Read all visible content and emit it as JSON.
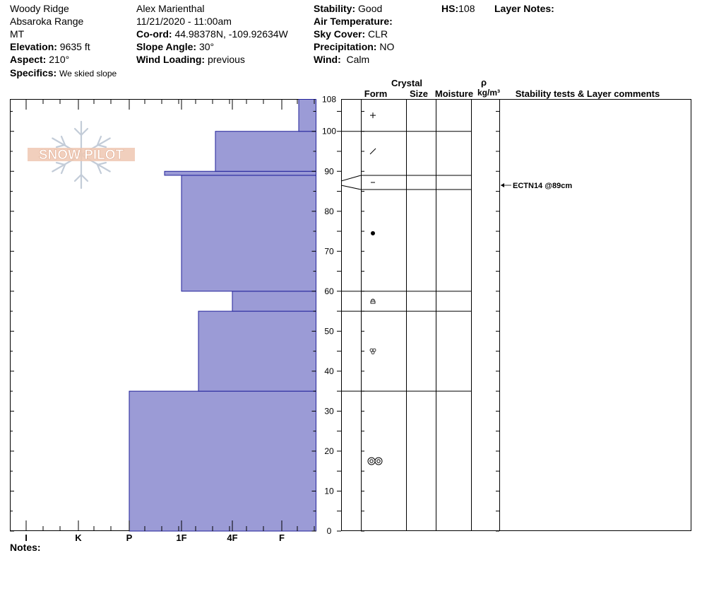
{
  "header": {
    "location": "Woody Ridge",
    "range": "Absaroka Range",
    "state": "MT",
    "elevation_label": "Elevation:",
    "elevation_value": "9635 ft",
    "aspect_label": "Aspect:",
    "aspect_value": "210°",
    "specifics_label": "Specifics:",
    "specifics_value": "We skied slope",
    "observer": "Alex Marienthal",
    "datetime": "11/21/2020 - 11:00am",
    "coord_label": "Co-ord:",
    "coord_value": "44.98378N, -109.92634W",
    "slope_label": "Slope Angle:",
    "slope_value": "30°",
    "wind_loading_label": "Wind Loading:",
    "wind_loading_value": "previous",
    "stability_label": "Stability:",
    "stability_value": "Good",
    "air_temp_label": "Air Temperature:",
    "sky_label": "Sky Cover:",
    "sky_value": "CLR",
    "precip_label": "Precipitation:",
    "precip_value": "NO",
    "wind_label": "Wind:",
    "wind_value": "Calm",
    "hs_label": "HS:",
    "hs_value": "108",
    "layer_notes_label": "Layer Notes:"
  },
  "logo": {
    "text": "SNOW PILOT"
  },
  "notes_label": "Notes:",
  "columns": {
    "crystal": "Crystal",
    "form": "Form",
    "size": "Size",
    "moisture": "Moisture",
    "rho": "ρ",
    "density_unit": "kg/m³",
    "stability": "Stability tests & Layer comments"
  },
  "colors": {
    "hardness_fill": "#9b9bd6",
    "hardness_edge": "#22229a"
  },
  "chart_data": {
    "type": "bar",
    "title": "",
    "y_ticks": [
      0,
      10,
      20,
      30,
      40,
      50,
      60,
      70,
      80,
      90,
      100,
      108
    ],
    "y_range_cm": [
      0,
      108
    ],
    "hardness_scale": [
      "I",
      "K",
      "P",
      "1F",
      "4F",
      "F"
    ],
    "layers": [
      {
        "bottom": 0,
        "top": 35,
        "hardness": "P",
        "form": "melt-forms"
      },
      {
        "bottom": 35,
        "top": 55,
        "hardness": "1F+",
        "form": "melt-freeze"
      },
      {
        "bottom": 55,
        "top": 60,
        "hardness": "4F",
        "form": "depth-hoar"
      },
      {
        "bottom": 60,
        "top": 89,
        "hardness": "1F",
        "form": "rounds"
      },
      {
        "bottom": 89,
        "top": 90,
        "hardness": "1F-",
        "form": "faceted"
      },
      {
        "bottom": 90,
        "top": 100,
        "hardness": "4F-",
        "form": "decomposing"
      },
      {
        "bottom": 100,
        "top": 108,
        "hardness": "F+",
        "form": "new-snow"
      }
    ],
    "tests": [
      {
        "label": "ECTN14 @89cm",
        "depth": 89
      }
    ]
  }
}
